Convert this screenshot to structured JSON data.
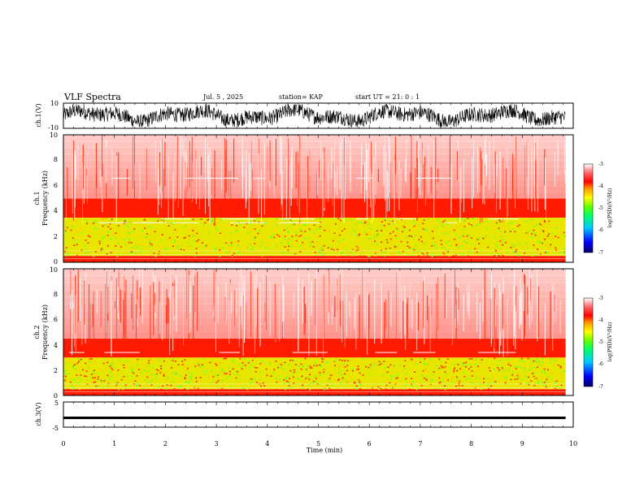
{
  "header": {
    "title": "VLF Spectra",
    "date": "Jul. 5 , 2025",
    "station": "station= KAP",
    "start": "start UT = 21: 0 : 1"
  },
  "colors": {
    "background": "#ffffff",
    "waveform": "#000000",
    "colormap": [
      "#000066",
      "#0000ff",
      "#00ccff",
      "#00ff66",
      "#66ff00",
      "#ffff00",
      "#ff9900",
      "#ff0000",
      "#ffffff"
    ]
  },
  "chart_data": [
    {
      "type": "line",
      "name": "ch1-waveform",
      "ylabel": "ch.1(V)",
      "ylim": [
        -10,
        10
      ],
      "yticks": [
        "10",
        "-10"
      ],
      "xlim": [
        0,
        10
      ],
      "description_values": {
        "amplitude_envelope_V": [
          -9,
          9
        ],
        "segments_end_min": 9.85
      }
    },
    {
      "type": "heatmap",
      "name": "ch1-spectrogram",
      "ylabel": "ch.1\nFrequency (kHz)",
      "ylabel_lines": [
        "ch.1",
        "Frequency (kHz)"
      ],
      "ylim": [
        0,
        10
      ],
      "yticks": [
        "0",
        "2",
        "4",
        "6",
        "8",
        "10"
      ],
      "xlim": [
        0,
        10
      ],
      "data_extent_min": [
        0,
        9.85
      ],
      "colorbar": {
        "label": "log(PSD)(V²/Hz)",
        "ticks": [
          "-3",
          "-4",
          "-5",
          "-6",
          "-7"
        ],
        "range": [
          -7,
          -3
        ]
      },
      "bands_kHz": [
        {
          "range": [
            0,
            0.5
          ],
          "level": "red"
        },
        {
          "range": [
            0.5,
            3.5
          ],
          "level": "yellow-green"
        },
        {
          "range": [
            3.5,
            5
          ],
          "level": "red"
        },
        {
          "range": [
            5,
            10
          ],
          "level": "red-white"
        }
      ],
      "tone_lines_kHz": [
        6.6,
        3.4,
        3.1
      ]
    },
    {
      "type": "heatmap",
      "name": "ch2-spectrogram",
      "ylabel": "ch.2\nFrequency (kHz)",
      "ylabel_lines": [
        "ch.2",
        "Frequency (kHz)"
      ],
      "ylim": [
        0,
        10
      ],
      "yticks": [
        "0",
        "2",
        "4",
        "6",
        "8",
        "10"
      ],
      "xlim": [
        0,
        10
      ],
      "data_extent_min": [
        0,
        9.85
      ],
      "colorbar": {
        "label": "log(PSD)(V²/Hz)",
        "ticks": [
          "-3",
          "-4",
          "-5",
          "-6",
          "-7"
        ],
        "range": [
          -7,
          -3
        ]
      },
      "bands_kHz": [
        {
          "range": [
            0,
            0.5
          ],
          "level": "red"
        },
        {
          "range": [
            0.5,
            3
          ],
          "level": "yellow-green"
        },
        {
          "range": [
            3,
            4.5
          ],
          "level": "red"
        },
        {
          "range": [
            4.5,
            10
          ],
          "level": "red-white"
        }
      ],
      "tone_lines_kHz": [
        3.4
      ]
    },
    {
      "type": "line",
      "name": "ch3-waveform",
      "ylabel": "ch.3(V)",
      "ylim": [
        -5,
        5
      ],
      "yticks": [
        "5",
        "-5"
      ],
      "xlim": [
        0,
        10
      ],
      "xlabel": "Time (min)",
      "xticks": [
        "0",
        "1",
        "2",
        "3",
        "4",
        "5",
        "6",
        "7",
        "8",
        "9",
        "10"
      ],
      "description_values": {
        "level_V": -1.3,
        "band_V": [
          -1.8,
          -0.8
        ]
      }
    }
  ]
}
